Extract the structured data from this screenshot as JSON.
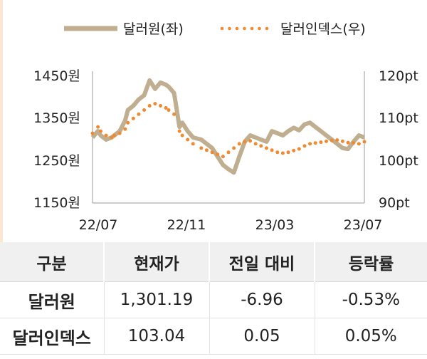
{
  "chart_data": {
    "type": "line",
    "x_axis": {
      "tick_labels": [
        "22/07",
        "22/11",
        "23/03",
        "23/07"
      ]
    },
    "y_left": {
      "tick_labels": [
        "1450원",
        "1350원",
        "1250원",
        "1150원"
      ],
      "ylim": [
        1150,
        1450
      ]
    },
    "y_right": {
      "tick_labels": [
        "120pt",
        "110pt",
        "100pt",
        "90pt"
      ],
      "ylim": [
        90,
        120
      ]
    },
    "legend_position": "top",
    "series": [
      {
        "name": "달러원(좌)",
        "axis": "left",
        "style": "solid",
        "color": "#bfae8f",
        "x": [
          0,
          0.02,
          0.03,
          0.05,
          0.07,
          0.08,
          0.1,
          0.12,
          0.13,
          0.15,
          0.17,
          0.19,
          0.21,
          0.23,
          0.25,
          0.27,
          0.28,
          0.3,
          0.32,
          0.33,
          0.35,
          0.37,
          0.4,
          0.42,
          0.44,
          0.46,
          0.48,
          0.5,
          0.52,
          0.54,
          0.56,
          0.58,
          0.6,
          0.62,
          0.64,
          0.66,
          0.68,
          0.7,
          0.72,
          0.74,
          0.76,
          0.78,
          0.8,
          0.82,
          0.84,
          0.86,
          0.88,
          0.9,
          0.92,
          0.94,
          0.96,
          0.98,
          1.0
        ],
        "values": [
          1305,
          1320,
          1310,
          1300,
          1305,
          1310,
          1320,
          1345,
          1370,
          1380,
          1395,
          1405,
          1440,
          1420,
          1435,
          1430,
          1425,
          1410,
          1330,
          1340,
          1320,
          1305,
          1300,
          1290,
          1280,
          1260,
          1240,
          1230,
          1222,
          1260,
          1295,
          1310,
          1305,
          1300,
          1295,
          1320,
          1315,
          1310,
          1320,
          1328,
          1322,
          1336,
          1340,
          1330,
          1320,
          1310,
          1300,
          1290,
          1280,
          1278,
          1295,
          1310,
          1305
        ]
      },
      {
        "name": "달러인덱스(우)",
        "axis": "right",
        "style": "dotted",
        "color": "#f08a32",
        "x": [
          0,
          0.02,
          0.03,
          0.05,
          0.07,
          0.08,
          0.1,
          0.12,
          0.13,
          0.15,
          0.17,
          0.19,
          0.21,
          0.23,
          0.25,
          0.27,
          0.28,
          0.3,
          0.32,
          0.33,
          0.35,
          0.37,
          0.4,
          0.42,
          0.44,
          0.46,
          0.48,
          0.5,
          0.52,
          0.54,
          0.56,
          0.58,
          0.6,
          0.62,
          0.64,
          0.66,
          0.68,
          0.7,
          0.72,
          0.74,
          0.76,
          0.78,
          0.8,
          0.82,
          0.84,
          0.86,
          0.88,
          0.9,
          0.92,
          0.94,
          0.96,
          0.98,
          1.0
        ],
        "values": [
          106.5,
          108,
          107,
          106,
          105.5,
          106,
          106.5,
          107.5,
          109,
          110,
          111,
          112,
          113,
          113.5,
          113,
          112.5,
          112,
          111,
          107,
          106,
          105,
          104,
          103,
          102.5,
          102,
          101.5,
          101,
          102,
          103,
          104,
          104.5,
          104.7,
          104,
          103.5,
          103,
          102.5,
          102,
          101.8,
          102,
          102.4,
          102.8,
          103.5,
          104,
          104.2,
          104.4,
          104.6,
          104.8,
          104.9,
          104.6,
          104.3,
          104.2,
          104,
          104.5
        ]
      }
    ]
  },
  "table": {
    "headers": [
      "구분",
      "현재가",
      "전일 대비",
      "등락률"
    ],
    "rows": [
      [
        "달러원",
        "1,301.19",
        "-6.96",
        "-0.53%"
      ],
      [
        "달러인덱스",
        "103.04",
        "0.05",
        "0.05%"
      ]
    ]
  }
}
